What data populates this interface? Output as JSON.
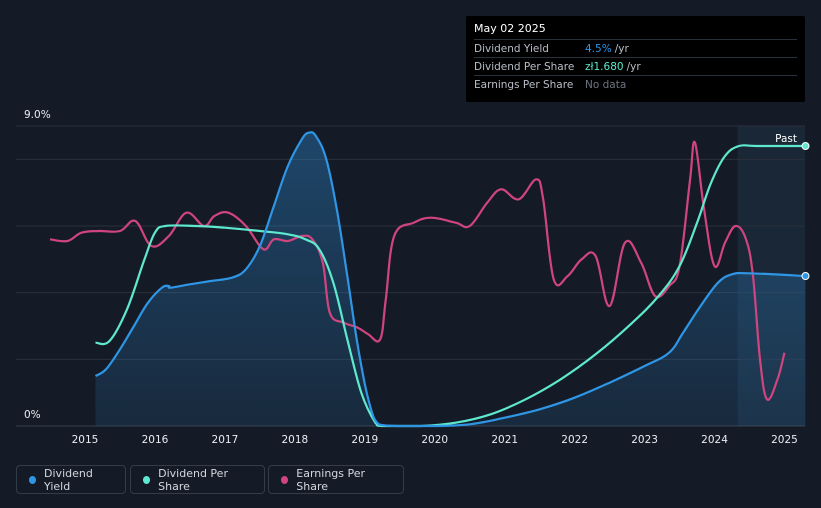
{
  "tooltip": {
    "date": "May 02 2025",
    "rows": [
      {
        "label": "Dividend Yield",
        "value": "4.5%",
        "unit": "/yr"
      },
      {
        "label": "Dividend Per Share",
        "value": "zł1.680",
        "unit": "/yr"
      },
      {
        "label": "Earnings Per Share",
        "value": "No data"
      }
    ]
  },
  "legend": [
    {
      "label": "Dividend Yield",
      "color": "#2f96e6"
    },
    {
      "label": "Dividend Per Share",
      "color": "#5ee9cf"
    },
    {
      "label": "Earnings Per Share",
      "color": "#d0457f"
    }
  ],
  "chart_data": {
    "type": "line",
    "ytick_top": "9.0%",
    "ytick_bottom": "0%",
    "ylim": [
      0,
      9.0
    ],
    "xlim": [
      2014.4,
      2025.3
    ],
    "past_label": "Past",
    "xticks": [
      "2015",
      "2016",
      "2017",
      "2018",
      "2019",
      "2020",
      "2021",
      "2022",
      "2023",
      "2024",
      "2025"
    ],
    "series": [
      {
        "name": "Dividend Yield",
        "color": "#2f96e6",
        "fill": true,
        "points": [
          [
            2015.15,
            1.5
          ],
          [
            2015.3,
            1.7
          ],
          [
            2015.5,
            2.3
          ],
          [
            2015.7,
            3.0
          ],
          [
            2015.9,
            3.7
          ],
          [
            2016.1,
            4.15
          ],
          [
            2016.2,
            4.2
          ],
          [
            2016.22,
            4.15
          ],
          [
            2016.5,
            4.25
          ],
          [
            2016.8,
            4.35
          ],
          [
            2017.1,
            4.45
          ],
          [
            2017.3,
            4.7
          ],
          [
            2017.5,
            5.4
          ],
          [
            2017.7,
            6.6
          ],
          [
            2017.9,
            7.8
          ],
          [
            2018.1,
            8.6
          ],
          [
            2018.2,
            8.8
          ],
          [
            2018.3,
            8.7
          ],
          [
            2018.45,
            8.0
          ],
          [
            2018.6,
            6.5
          ],
          [
            2018.75,
            4.5
          ],
          [
            2018.9,
            2.4
          ],
          [
            2019.05,
            0.8
          ],
          [
            2019.2,
            0.05
          ],
          [
            2019.5,
            0
          ],
          [
            2020.0,
            0
          ],
          [
            2020.5,
            0.05
          ],
          [
            2021.0,
            0.25
          ],
          [
            2021.5,
            0.5
          ],
          [
            2022.0,
            0.85
          ],
          [
            2022.5,
            1.3
          ],
          [
            2023.0,
            1.8
          ],
          [
            2023.35,
            2.2
          ],
          [
            2023.55,
            2.8
          ],
          [
            2023.8,
            3.6
          ],
          [
            2024.05,
            4.3
          ],
          [
            2024.25,
            4.55
          ],
          [
            2024.5,
            4.58
          ],
          [
            2025.3,
            4.5
          ]
        ]
      },
      {
        "name": "Dividend Per Share",
        "color": "#5ee9cf",
        "fill": false,
        "points": [
          [
            2015.15,
            2.5
          ],
          [
            2015.35,
            2.55
          ],
          [
            2015.6,
            3.5
          ],
          [
            2015.85,
            5.0
          ],
          [
            2016.0,
            5.8
          ],
          [
            2016.15,
            6.0
          ],
          [
            2016.6,
            6.0
          ],
          [
            2017.0,
            5.95
          ],
          [
            2017.5,
            5.85
          ],
          [
            2017.9,
            5.75
          ],
          [
            2018.15,
            5.6
          ],
          [
            2018.35,
            5.3
          ],
          [
            2018.55,
            4.3
          ],
          [
            2018.75,
            2.6
          ],
          [
            2018.95,
            1.0
          ],
          [
            2019.15,
            0.1
          ],
          [
            2019.25,
            0
          ],
          [
            2019.8,
            0
          ],
          [
            2020.3,
            0.1
          ],
          [
            2020.8,
            0.35
          ],
          [
            2021.3,
            0.8
          ],
          [
            2021.8,
            1.4
          ],
          [
            2022.3,
            2.15
          ],
          [
            2022.8,
            3.05
          ],
          [
            2023.2,
            3.9
          ],
          [
            2023.5,
            4.8
          ],
          [
            2023.75,
            6.1
          ],
          [
            2023.95,
            7.3
          ],
          [
            2024.15,
            8.1
          ],
          [
            2024.35,
            8.4
          ],
          [
            2024.6,
            8.4
          ],
          [
            2025.3,
            8.4
          ]
        ]
      },
      {
        "name": "Earnings Per Share",
        "color": "#d0457f",
        "fill": false,
        "points": [
          [
            2014.5,
            5.6
          ],
          [
            2014.75,
            5.55
          ],
          [
            2014.95,
            5.8
          ],
          [
            2015.2,
            5.85
          ],
          [
            2015.5,
            5.85
          ],
          [
            2015.72,
            6.15
          ],
          [
            2015.95,
            5.4
          ],
          [
            2016.2,
            5.7
          ],
          [
            2016.45,
            6.4
          ],
          [
            2016.7,
            6.0
          ],
          [
            2016.85,
            6.3
          ],
          [
            2017.05,
            6.4
          ],
          [
            2017.3,
            6.0
          ],
          [
            2017.55,
            5.3
          ],
          [
            2017.7,
            5.6
          ],
          [
            2017.9,
            5.55
          ],
          [
            2018.1,
            5.7
          ],
          [
            2018.25,
            5.6
          ],
          [
            2018.4,
            4.9
          ],
          [
            2018.5,
            3.4
          ],
          [
            2018.7,
            3.1
          ],
          [
            2018.9,
            2.95
          ],
          [
            2019.05,
            2.75
          ],
          [
            2019.22,
            2.6
          ],
          [
            2019.3,
            3.8
          ],
          [
            2019.42,
            5.7
          ],
          [
            2019.7,
            6.1
          ],
          [
            2019.95,
            6.25
          ],
          [
            2020.3,
            6.1
          ],
          [
            2020.5,
            6.0
          ],
          [
            2020.75,
            6.7
          ],
          [
            2020.95,
            7.1
          ],
          [
            2021.2,
            6.8
          ],
          [
            2021.45,
            7.4
          ],
          [
            2021.55,
            6.8
          ],
          [
            2021.7,
            4.4
          ],
          [
            2021.9,
            4.5
          ],
          [
            2022.1,
            5.0
          ],
          [
            2022.3,
            5.1
          ],
          [
            2022.5,
            3.6
          ],
          [
            2022.72,
            5.5
          ],
          [
            2022.95,
            4.9
          ],
          [
            2023.15,
            3.9
          ],
          [
            2023.35,
            4.2
          ],
          [
            2023.5,
            4.8
          ],
          [
            2023.65,
            7.4
          ],
          [
            2023.72,
            8.5
          ],
          [
            2023.85,
            6.5
          ],
          [
            2024.0,
            4.8
          ],
          [
            2024.15,
            5.5
          ],
          [
            2024.3,
            6.0
          ],
          [
            2024.45,
            5.6
          ],
          [
            2024.55,
            4.5
          ],
          [
            2024.65,
            2.0
          ],
          [
            2024.75,
            0.8
          ],
          [
            2024.9,
            1.4
          ],
          [
            2025.0,
            2.2
          ]
        ]
      }
    ]
  }
}
